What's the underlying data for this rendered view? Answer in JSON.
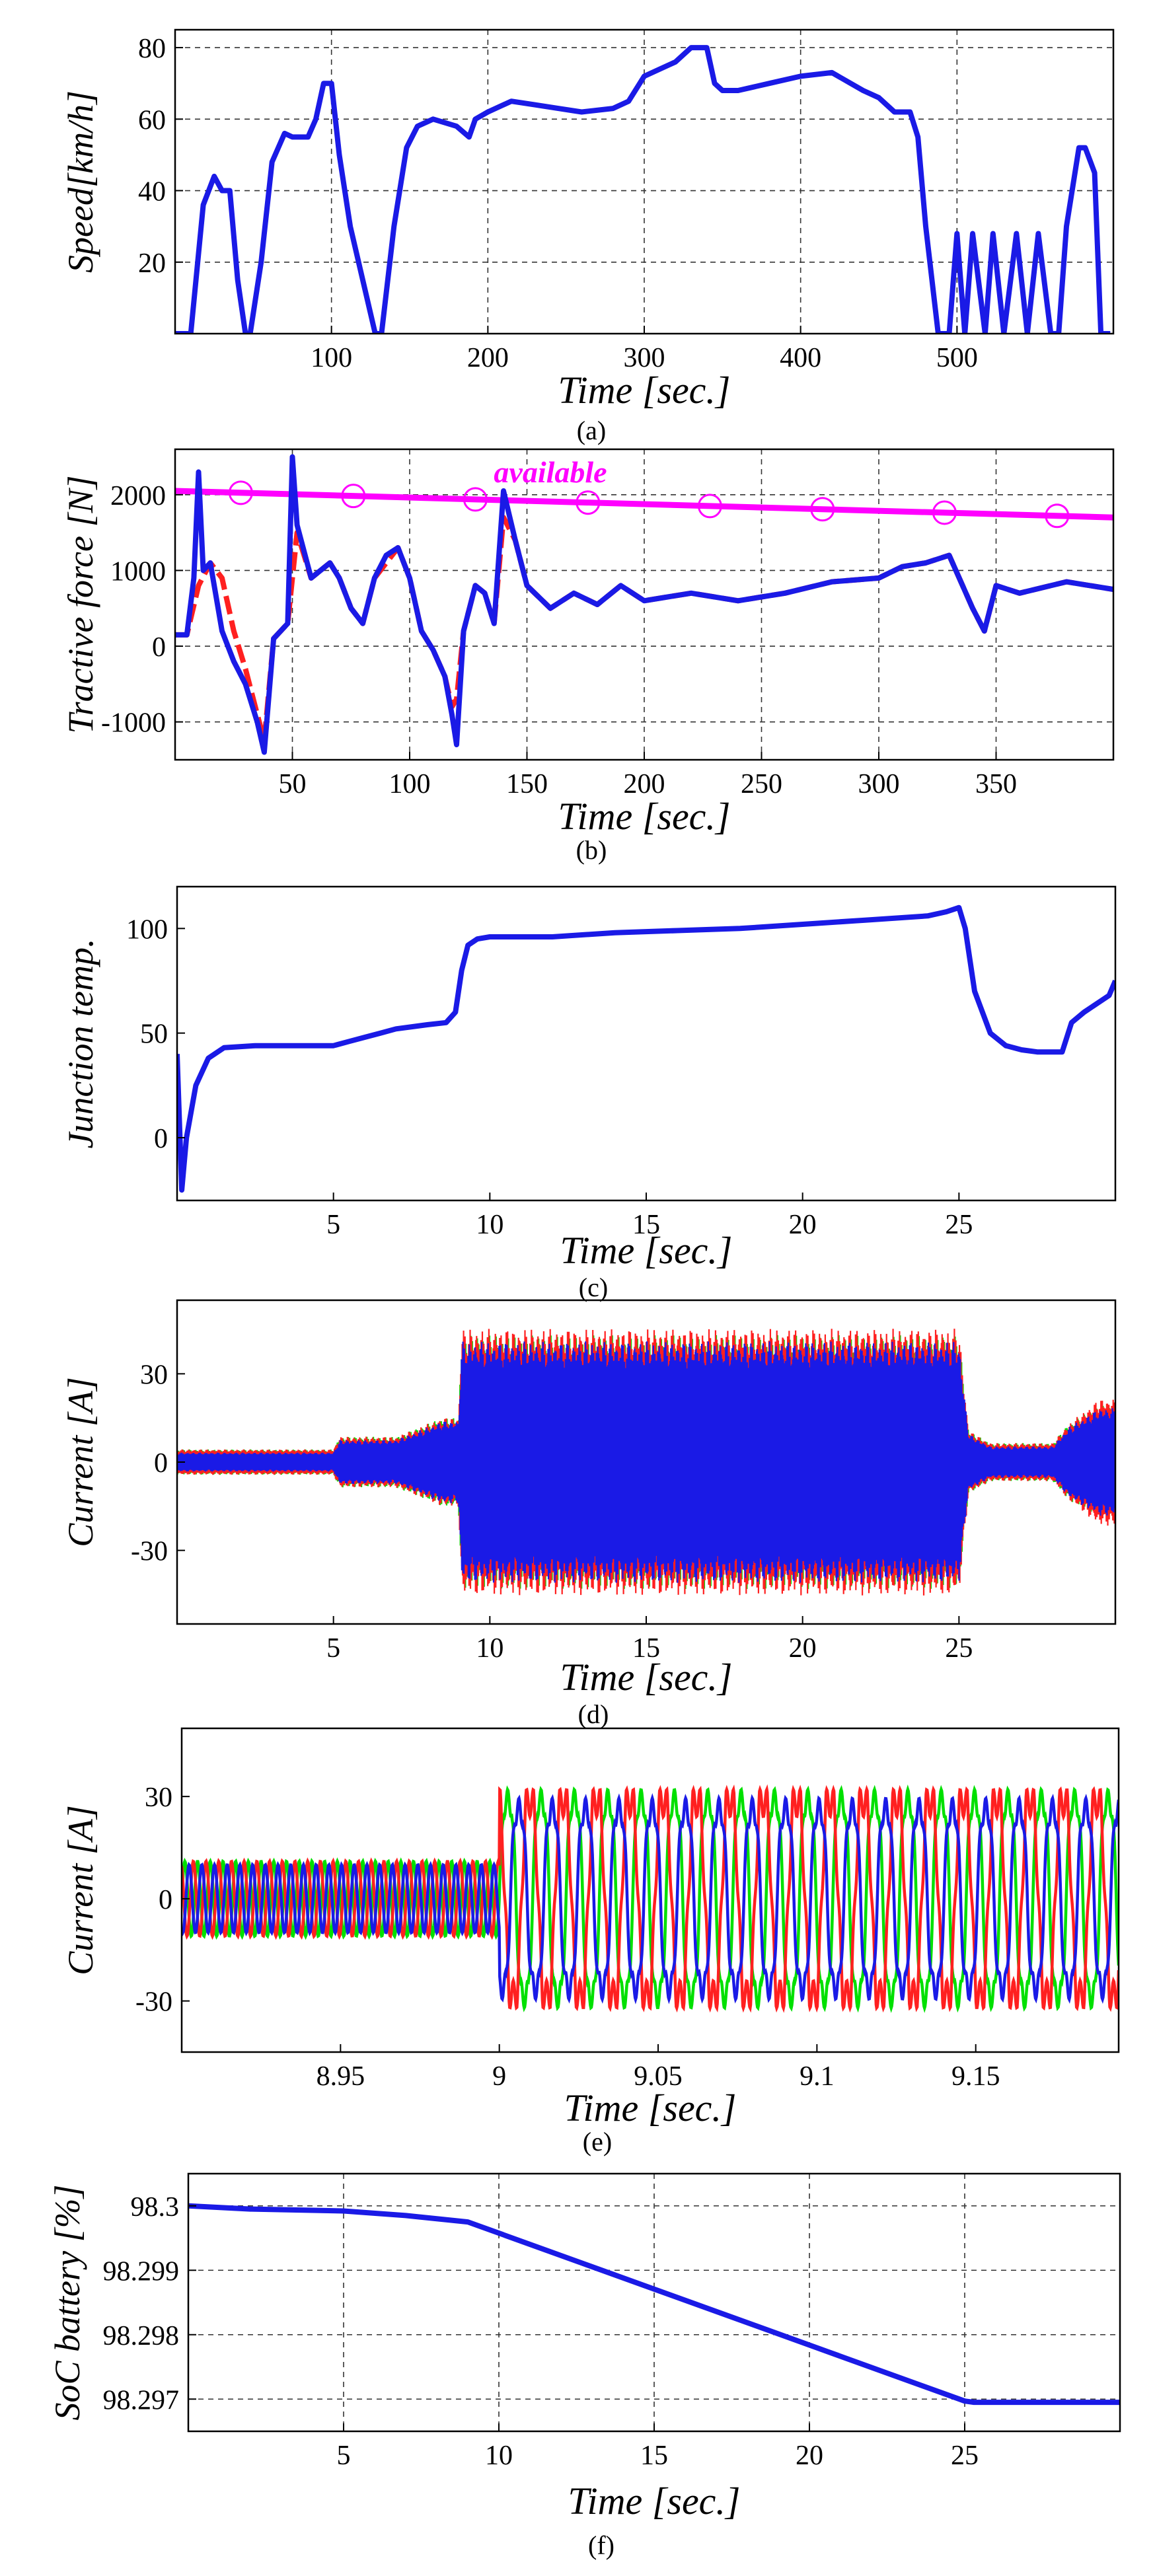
{
  "chart_data": [
    {
      "id": "a",
      "type": "line",
      "caption": "(a)",
      "xlabel": "Time [sec.]",
      "ylabel": "Speed[km/h]",
      "xlim": [
        0,
        600
      ],
      "ylim": [
        0,
        85
      ],
      "xticks": [
        100,
        200,
        300,
        400,
        500
      ],
      "yticks": [
        20,
        40,
        60,
        80
      ],
      "grid": true,
      "series": [
        {
          "color": "#1a1ae6",
          "x": [
            0,
            10,
            18,
            25,
            30,
            35,
            40,
            45,
            48,
            55,
            62,
            70,
            75,
            85,
            90,
            95,
            100,
            105,
            112,
            120,
            128,
            132,
            140,
            148,
            155,
            165,
            180,
            188,
            192,
            200,
            215,
            230,
            245,
            260,
            280,
            290,
            300,
            310,
            320,
            330,
            340,
            345,
            350,
            360,
            380,
            400,
            420,
            440,
            450,
            460,
            470,
            475,
            480,
            488,
            495,
            500,
            505,
            510,
            518,
            523,
            530,
            538,
            545,
            552,
            560,
            565,
            570,
            578,
            582,
            588,
            592,
            598
          ],
          "y": [
            0,
            0,
            36,
            44,
            40,
            40,
            15,
            0,
            0,
            20,
            48,
            56,
            55,
            55,
            60,
            70,
            70,
            50,
            30,
            15,
            0,
            0,
            30,
            52,
            58,
            60,
            58,
            55,
            60,
            62,
            65,
            64,
            63,
            62,
            63,
            65,
            72,
            74,
            76,
            80,
            80,
            70,
            68,
            68,
            70,
            72,
            73,
            68,
            66,
            62,
            62,
            55,
            30,
            0,
            0,
            28,
            0,
            28,
            0,
            28,
            0,
            28,
            0,
            28,
            0,
            0,
            30,
            52,
            52,
            45,
            0,
            0
          ]
        }
      ]
    },
    {
      "id": "b",
      "type": "line",
      "caption": "(b)",
      "xlabel": "Time [sec.]",
      "ylabel": "Tractive force [N]",
      "xlim": [
        0,
        400
      ],
      "ylim": [
        -1500,
        2600
      ],
      "xticks": [
        50,
        100,
        150,
        200,
        250,
        300,
        350
      ],
      "yticks": [
        -1000,
        0,
        1000,
        2000
      ],
      "grid": true,
      "annotation": "available",
      "series": [
        {
          "color": "#ff00ff",
          "x": [
            0,
            400
          ],
          "y": [
            2050,
            1700
          ],
          "markers_x": [
            28,
            76,
            128,
            176,
            228,
            276,
            328,
            376
          ]
        },
        {
          "color": "#ff2020",
          "x": [
            0,
            5,
            10,
            15,
            20,
            25,
            30,
            35,
            38,
            42,
            48,
            52,
            58,
            62,
            66,
            70,
            75,
            80,
            85,
            90,
            95,
            100,
            105,
            110,
            115,
            118,
            120,
            123,
            128,
            132,
            136,
            140,
            145,
            150,
            160,
            170,
            180,
            190,
            200,
            210,
            220,
            240,
            260,
            280,
            300,
            310,
            320,
            330,
            340,
            345,
            350,
            360,
            380,
            400
          ],
          "y": [
            150,
            150,
            800,
            1100,
            900,
            200,
            -300,
            -900,
            -1250,
            100,
            300,
            1500,
            900,
            1000,
            1100,
            900,
            500,
            300,
            900,
            1100,
            1300,
            900,
            200,
            -50,
            -400,
            -800,
            -700,
            200,
            800,
            700,
            300,
            1700,
            1400,
            800,
            500,
            700,
            550,
            800,
            600,
            650,
            700,
            600,
            700,
            850,
            900,
            1050,
            1100,
            1200,
            500,
            200,
            800,
            700,
            850,
            750
          ]
        },
        {
          "color": "#1a1ae6",
          "x": [
            0,
            5,
            8,
            10,
            12,
            15,
            20,
            25,
            30,
            35,
            38,
            42,
            48,
            50,
            52,
            58,
            62,
            66,
            70,
            75,
            80,
            85,
            90,
            95,
            100,
            105,
            110,
            115,
            118,
            120,
            123,
            128,
            132,
            136,
            140,
            145,
            150,
            160,
            170,
            180,
            190,
            200,
            210,
            220,
            240,
            260,
            280,
            300,
            310,
            320,
            330,
            340,
            345,
            350,
            360,
            380,
            400
          ],
          "y": [
            150,
            150,
            900,
            2300,
            1000,
            1100,
            200,
            -200,
            -500,
            -1000,
            -1400,
            100,
            300,
            2500,
            1600,
            900,
            1000,
            1100,
            900,
            500,
            300,
            900,
            1200,
            1300,
            900,
            200,
            -50,
            -400,
            -900,
            -1300,
            200,
            800,
            700,
            300,
            2050,
            1400,
            800,
            500,
            700,
            550,
            800,
            600,
            650,
            700,
            600,
            700,
            850,
            900,
            1050,
            1100,
            1200,
            500,
            200,
            800,
            700,
            850,
            750
          ]
        }
      ]
    },
    {
      "id": "c",
      "type": "line",
      "caption": "(c)",
      "xlabel": "Time [sec.]",
      "ylabel": "Junction temp.",
      "xlim": [
        0,
        30
      ],
      "ylim": [
        -30,
        120
      ],
      "xticks": [
        5,
        10,
        15,
        20,
        25
      ],
      "yticks": [
        0,
        50,
        100
      ],
      "grid": false,
      "series": [
        {
          "color": "#1a1ae6",
          "x": [
            0,
            0.15,
            0.3,
            0.6,
            1.0,
            1.5,
            2.5,
            4,
            5,
            5.5,
            6,
            6.5,
            7,
            8,
            8.6,
            8.9,
            9.1,
            9.3,
            9.6,
            10,
            12,
            14,
            16,
            18,
            20,
            22,
            24,
            24.6,
            25,
            25.2,
            25.5,
            26,
            26.5,
            27,
            27.5,
            28,
            28.3,
            28.6,
            29,
            29.5,
            29.8,
            30
          ],
          "y": [
            40,
            -25,
            0,
            25,
            38,
            43,
            44,
            44,
            44,
            46,
            48,
            50,
            52,
            54,
            55,
            60,
            80,
            92,
            95,
            96,
            96,
            98,
            99,
            100,
            102,
            104,
            106,
            108,
            110,
            100,
            70,
            50,
            44,
            42,
            41,
            41,
            41,
            55,
            60,
            65,
            68,
            75
          ]
        }
      ]
    },
    {
      "id": "d",
      "type": "line",
      "caption": "(d)",
      "xlabel": "Time [sec.]",
      "ylabel": "Current [A]",
      "xlim": [
        0,
        30
      ],
      "ylim": [
        -55,
        55
      ],
      "xticks": [
        5,
        10,
        15,
        20,
        25
      ],
      "yticks": [
        -30,
        0,
        30
      ],
      "grid": false,
      "series": [
        {
          "color": "#00e000",
          "name": "",
          "x": [
            0,
            5,
            5.2,
            7,
            7.5,
            8.5,
            9,
            9.1,
            25,
            25.3,
            26,
            28,
            28.5,
            29.5,
            30
          ],
          "amplitude": [
            4,
            4,
            8,
            8,
            10,
            14,
            14,
            40,
            40,
            10,
            6,
            6,
            12,
            18,
            18
          ]
        },
        {
          "color": "#ff2020",
          "name": "",
          "x": [
            0,
            5,
            5.2,
            7,
            7.5,
            8.5,
            9,
            9.1,
            25,
            25.3,
            26,
            28,
            28.5,
            29.5,
            30
          ],
          "amplitude": [
            4,
            4,
            8,
            8,
            10,
            14,
            14,
            42,
            42,
            10,
            6,
            6,
            12,
            20,
            20
          ]
        },
        {
          "color": "#1a1ae6",
          "name": "",
          "x": [
            0,
            5,
            5.2,
            7,
            7.5,
            8.5,
            9,
            9.1,
            25,
            25.3,
            26,
            28,
            28.5,
            29.5,
            30
          ],
          "amplitude": [
            3,
            3,
            7,
            7,
            9,
            13,
            13,
            38,
            38,
            9,
            5,
            5,
            11,
            17,
            17
          ]
        }
      ]
    },
    {
      "id": "e",
      "type": "line",
      "caption": "(e)",
      "xlabel": "Time [sec.]",
      "ylabel": "Current [A]",
      "xlim": [
        8.9,
        9.195
      ],
      "ylim": [
        -45,
        50
      ],
      "xticks": [
        8.95,
        9,
        9.05,
        9.1,
        9.15
      ],
      "yticks": [
        -30,
        0,
        30
      ],
      "grid": false,
      "series": [
        {
          "color": "#00e000",
          "name": "",
          "amplitude_before": 11,
          "amplitude_after": 33,
          "period_before": 0.004,
          "period_after": 0.0105,
          "phase": 0
        },
        {
          "color": "#ff2020",
          "name": "",
          "amplitude_before": 11,
          "amplitude_after": 33,
          "period_before": 0.004,
          "period_after": 0.0105,
          "phase": 2.094
        },
        {
          "color": "#1a1ae6",
          "name": "",
          "amplitude_before": 10,
          "amplitude_after": 30,
          "period_before": 0.004,
          "period_after": 0.0105,
          "phase": 4.189
        }
      ],
      "switch_time": 9.0
    },
    {
      "id": "f",
      "type": "line",
      "caption": "(f)",
      "xlabel": "Time [sec.]",
      "ylabel": "SoC battery [%]",
      "xlim": [
        0,
        30
      ],
      "ylim": [
        98.2965,
        98.3005
      ],
      "xticks": [
        5,
        10,
        15,
        20,
        25
      ],
      "yticks": [
        98.297,
        98.298,
        98.299,
        98.3
      ],
      "ytick_labels": [
        "98.297",
        "98.298",
        "98.299",
        "98.3"
      ],
      "grid": true,
      "series": [
        {
          "color": "#1a1ae6",
          "x": [
            0,
            2,
            5,
            7,
            9,
            25,
            25.3,
            30
          ],
          "y": [
            98.3,
            98.29995,
            98.29992,
            98.29985,
            98.29975,
            98.29697,
            98.29695,
            98.29695
          ]
        }
      ]
    }
  ]
}
